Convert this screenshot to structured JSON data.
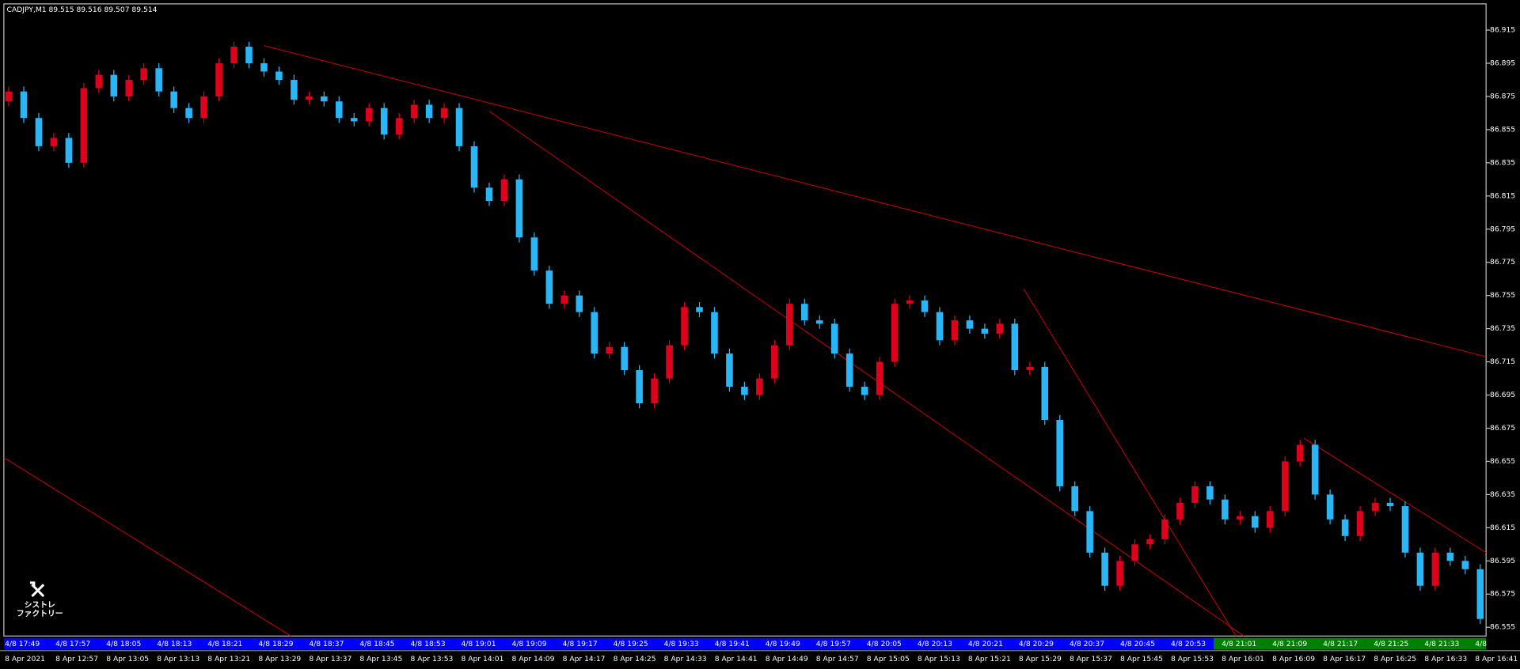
{
  "chart_data": {
    "type": "candlestick",
    "title": "CADJPY,M1  89.515 89.516 89.507 89.514",
    "logo": [
      "シストレ",
      "ファクトリー"
    ],
    "ylim": [
      86.5497,
      86.9308
    ],
    "yticks": [
      86.915,
      86.895,
      86.875,
      86.855,
      86.835,
      86.815,
      86.795,
      86.775,
      86.755,
      86.735,
      86.715,
      86.695,
      86.675,
      86.655,
      86.635,
      86.615,
      86.595,
      86.575,
      86.555
    ],
    "up_color": "#e0001b",
    "down_color": "#29b6f6",
    "open": [
      86.872,
      86.878,
      86.862,
      86.845,
      86.85,
      86.835,
      86.88,
      86.888,
      86.875,
      86.885,
      86.892,
      86.878,
      86.868,
      86.862,
      86.875,
      86.895,
      86.905,
      86.895,
      86.89,
      86.885,
      86.873,
      86.875,
      86.872,
      86.862,
      86.86,
      86.868,
      86.852,
      86.862,
      86.87,
      86.862,
      86.868,
      86.845,
      86.82,
      86.812,
      86.825,
      86.79,
      86.77,
      86.75,
      86.755,
      86.745,
      86.72,
      86.724,
      86.71,
      86.69,
      86.705,
      86.725,
      86.748,
      86.745,
      86.72,
      86.7,
      86.695,
      86.705,
      86.725,
      86.75,
      86.74,
      86.738,
      86.72,
      86.7,
      86.695,
      86.715,
      86.75,
      86.752,
      86.745,
      86.728,
      86.74,
      86.735,
      86.732,
      86.738,
      86.71,
      86.712,
      86.68,
      86.64,
      86.625,
      86.6,
      86.58,
      86.595,
      86.605,
      86.608,
      86.62,
      86.63,
      86.64,
      86.632,
      86.62,
      86.622,
      86.615,
      86.625,
      86.655,
      86.665,
      86.635,
      86.62,
      86.61,
      86.625,
      86.63,
      86.628,
      86.6,
      86.58,
      86.6,
      86.595,
      86.59
    ],
    "close": [
      86.878,
      86.862,
      86.845,
      86.85,
      86.835,
      86.88,
      86.888,
      86.875,
      86.885,
      86.892,
      86.878,
      86.868,
      86.862,
      86.875,
      86.895,
      86.905,
      86.895,
      86.89,
      86.885,
      86.873,
      86.875,
      86.872,
      86.862,
      86.86,
      86.868,
      86.852,
      86.862,
      86.87,
      86.862,
      86.868,
      86.845,
      86.82,
      86.812,
      86.825,
      86.79,
      86.77,
      86.75,
      86.755,
      86.745,
      86.72,
      86.724,
      86.71,
      86.69,
      86.705,
      86.725,
      86.748,
      86.745,
      86.72,
      86.7,
      86.695,
      86.705,
      86.725,
      86.75,
      86.74,
      86.738,
      86.72,
      86.7,
      86.695,
      86.715,
      86.75,
      86.752,
      86.745,
      86.728,
      86.74,
      86.735,
      86.732,
      86.738,
      86.71,
      86.712,
      86.68,
      86.64,
      86.625,
      86.6,
      86.58,
      86.595,
      86.605,
      86.608,
      86.62,
      86.63,
      86.64,
      86.632,
      86.62,
      86.622,
      86.615,
      86.625,
      86.655,
      86.665,
      86.635,
      86.62,
      86.61,
      86.625,
      86.63,
      86.628,
      86.6,
      86.58,
      86.6,
      86.595,
      86.59,
      86.56
    ],
    "high": [
      86.881,
      86.881,
      86.865,
      86.853,
      86.853,
      86.883,
      86.891,
      86.891,
      86.888,
      86.895,
      86.895,
      86.881,
      86.871,
      86.878,
      86.898,
      86.908,
      86.908,
      86.898,
      86.893,
      86.888,
      86.878,
      86.878,
      86.875,
      86.865,
      86.871,
      86.871,
      86.865,
      86.873,
      86.873,
      86.871,
      86.871,
      86.848,
      86.823,
      86.828,
      86.828,
      86.793,
      86.773,
      86.758,
      86.758,
      86.748,
      86.727,
      86.727,
      86.713,
      86.708,
      86.728,
      86.751,
      86.751,
      86.748,
      86.723,
      86.703,
      86.708,
      86.728,
      86.753,
      86.753,
      86.743,
      86.741,
      86.723,
      86.703,
      86.718,
      86.753,
      86.755,
      86.755,
      86.748,
      86.743,
      86.743,
      86.738,
      86.741,
      86.741,
      86.715,
      86.715,
      86.683,
      86.643,
      86.628,
      86.603,
      86.598,
      86.608,
      86.611,
      86.623,
      86.633,
      86.643,
      86.643,
      86.635,
      86.625,
      86.625,
      86.628,
      86.658,
      86.668,
      86.668,
      86.638,
      86.623,
      86.628,
      86.633,
      86.633,
      86.631,
      86.603,
      86.603,
      86.603,
      86.598,
      86.593
    ],
    "low": [
      86.869,
      86.859,
      86.842,
      86.842,
      86.832,
      86.832,
      86.877,
      86.872,
      86.872,
      86.882,
      86.875,
      86.865,
      86.859,
      86.859,
      86.872,
      86.892,
      86.892,
      86.887,
      86.882,
      86.87,
      86.87,
      86.869,
      86.859,
      86.857,
      86.857,
      86.849,
      86.849,
      86.859,
      86.859,
      86.859,
      86.842,
      86.817,
      86.809,
      86.809,
      86.787,
      86.767,
      86.747,
      86.747,
      86.742,
      86.717,
      86.717,
      86.707,
      86.687,
      86.687,
      86.702,
      86.722,
      86.742,
      86.717,
      86.697,
      86.692,
      86.692,
      86.702,
      86.722,
      86.737,
      86.735,
      86.717,
      86.697,
      86.692,
      86.692,
      86.712,
      86.747,
      86.742,
      86.725,
      86.725,
      86.732,
      86.729,
      86.729,
      86.707,
      86.707,
      86.677,
      86.637,
      86.622,
      86.597,
      86.577,
      86.577,
      86.592,
      86.602,
      86.605,
      86.617,
      86.627,
      86.629,
      86.617,
      86.617,
      86.612,
      86.612,
      86.622,
      86.652,
      86.632,
      86.617,
      86.607,
      86.607,
      86.622,
      86.625,
      86.597,
      86.577,
      86.577,
      86.592,
      86.587,
      86.557
    ],
    "x_labels_upper": [
      "4/8 17:49",
      "4/8 17:57",
      "4/8 18:05",
      "4/8 18:13",
      "4/8 18:21",
      "4/8 18:29",
      "4/8 18:37",
      "4/8 18:45",
      "4/8 18:53",
      "4/8 19:01",
      "4/8 19:09",
      "4/8 19:17",
      "4/8 19:25",
      "4/8 19:33",
      "4/8 19:41",
      "4/8 19:49",
      "4/8 19:57",
      "4/8 20:05",
      "4/8 20:13",
      "4/8 20:21",
      "4/8 20:29",
      "4/8 20:37",
      "4/8 20:45",
      "4/8 20:53",
      "4/8 21:01",
      "4/8 21:09",
      "4/8 21:17",
      "4/8 21:25",
      "4/8 21:33",
      "4/8"
    ],
    "x_labels_lower": [
      "8 Apr 2021",
      "8 Apr 12:57",
      "8 Apr 13:05",
      "8 Apr 13:13",
      "8 Apr 13:21",
      "8 Apr 13:29",
      "8 Apr 13:37",
      "8 Apr 13:45",
      "8 Apr 13:53",
      "8 Apr 14:01",
      "8 Apr 14:09",
      "8 Apr 14:17",
      "8 Apr 14:25",
      "8 Apr 14:33",
      "8 Apr 14:41",
      "8 Apr 14:49",
      "8 Apr 14:57",
      "8 Apr 15:05",
      "8 Apr 15:13",
      "8 Apr 15:21",
      "8 Apr 15:29",
      "8 Apr 15:37",
      "8 Apr 15:45",
      "8 Apr 15:53",
      "8 Apr 16:01",
      "8 Apr 16:09",
      "8 Apr 16:17",
      "8 Apr 16:25",
      "8 Apr 16:33",
      "8 Apr 16:41"
    ]
  }
}
